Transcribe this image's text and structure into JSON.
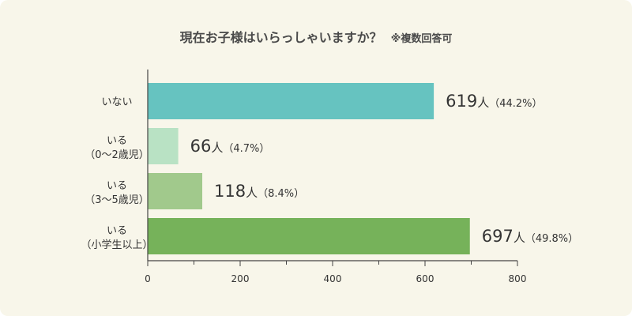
{
  "chart_data": {
    "type": "bar",
    "orientation": "horizontal",
    "title": "現在お子様はいらっしゃいますか？",
    "subtitle": "※複数回答可",
    "categories": [
      [
        "いない"
      ],
      [
        "いる",
        "（0〜2歳児）"
      ],
      [
        "いる",
        "（3〜5歳児）"
      ],
      [
        "いる",
        "（小学生以上）"
      ]
    ],
    "values": [
      619,
      66,
      118,
      697
    ],
    "value_unit": "人",
    "percent_labels": [
      "（44.2%）",
      "（4.7%）",
      "（8.4%）",
      "（49.8%）"
    ],
    "bar_colors": [
      "#66c3c0",
      "#b9e2c4",
      "#a1c98c",
      "#76b25a"
    ],
    "xlim": [
      0,
      800
    ],
    "x_ticks": [
      0,
      200,
      400,
      600,
      800
    ],
    "x_minor_ticks": [
      100,
      300,
      500,
      700
    ],
    "grid": false,
    "legend": "none"
  },
  "colors": {
    "background": "#f8f6ea",
    "text": "#333333",
    "axis": "#444444"
  }
}
